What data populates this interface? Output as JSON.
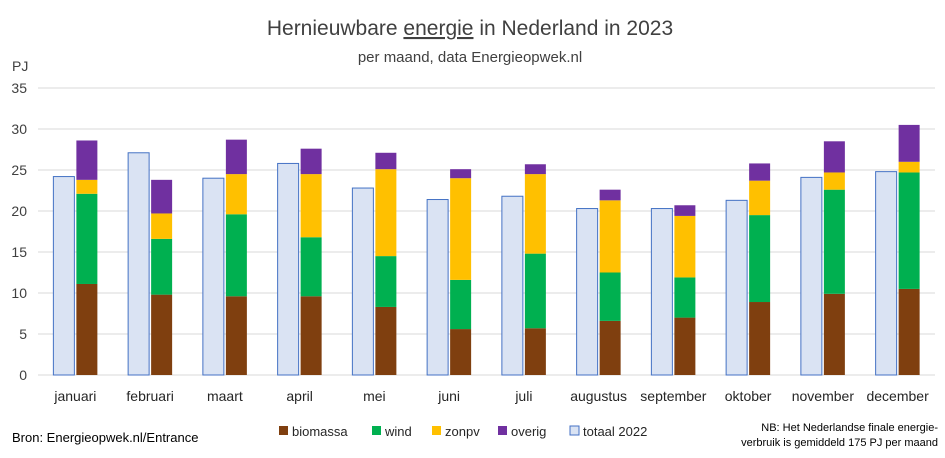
{
  "colors": {
    "biomassa": "#7f3f0f",
    "wind": "#00b050",
    "zonpv": "#ffc000",
    "overig": "#7030a0",
    "totaal_fill": "#dae3f3",
    "totaal_stroke": "#4472c4",
    "grid": "#d9d9d9"
  },
  "chart_data": {
    "type": "bar",
    "title_parts": [
      "Hernieuwbare ",
      "energie",
      " in Nederland in 2023"
    ],
    "subtitle": "per maand, data Energieopwek.nl",
    "ylabel": "PJ",
    "ylim": [
      0,
      35
    ],
    "yticks": [
      "0",
      "5",
      "10",
      "15",
      "20",
      "25",
      "30",
      "35"
    ],
    "grid": true,
    "categories": [
      "januari",
      "februari",
      "maart",
      "april",
      "mei",
      "juni",
      "juli",
      "augustus",
      "september",
      "oktober",
      "november",
      "december"
    ],
    "totaal_2022": {
      "name": "totaal 2022",
      "values": [
        24.2,
        27.1,
        24.0,
        25.8,
        22.8,
        21.4,
        21.8,
        20.3,
        20.3,
        21.3,
        24.1,
        24.8
      ]
    },
    "stacked_series": [
      {
        "name": "biomassa",
        "values": [
          11.1,
          9.8,
          9.6,
          9.6,
          8.3,
          5.6,
          5.7,
          6.6,
          7.0,
          8.9,
          9.9,
          10.5
        ]
      },
      {
        "name": "wind",
        "values": [
          11.0,
          6.8,
          10.0,
          7.2,
          6.2,
          6.0,
          9.1,
          5.9,
          4.9,
          10.6,
          12.7,
          14.2
        ]
      },
      {
        "name": "zonpv",
        "values": [
          1.7,
          3.1,
          4.9,
          7.7,
          10.6,
          12.4,
          9.7,
          8.8,
          7.5,
          4.2,
          2.1,
          1.3
        ]
      },
      {
        "name": "overig",
        "values": [
          4.8,
          4.1,
          4.2,
          3.1,
          2.0,
          1.1,
          1.2,
          1.3,
          1.3,
          2.1,
          3.8,
          4.5
        ]
      }
    ],
    "legend": [
      "biomassa",
      "wind",
      "zonpv",
      "overig",
      "totaal 2022"
    ],
    "legend_position": "bottom"
  },
  "source": "Bron: Energieopwek.nl/Entrance",
  "note_lines": [
    "NB: Het  Nederlandse finale energie-",
    "verbruik is gemiddeld 175 PJ per maand"
  ]
}
